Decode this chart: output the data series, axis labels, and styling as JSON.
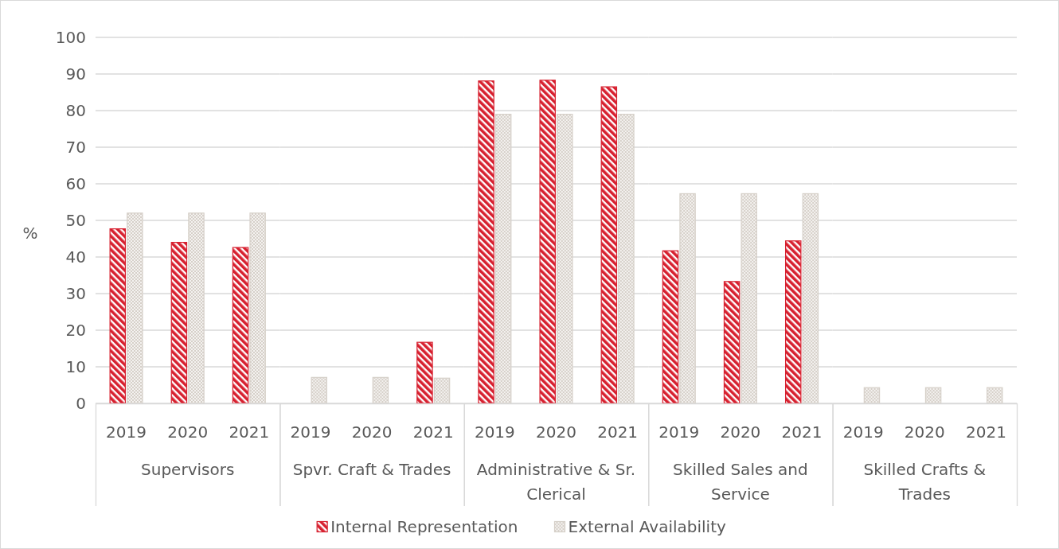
{
  "chart_data": [
    {
      "type": "bar",
      "xlabel": "Supervisors",
      "ylabel": "%",
      "categories": [
        "2019",
        "2020",
        "2021"
      ],
      "series": [
        {
          "color": "#d7202f",
          "values": [
            47.7,
            44.0,
            42.6
          ]
        },
        {
          "color": "#d6d0c9",
          "values": [
            52.0,
            52.0,
            52.0
          ]
        }
      ],
      "ylim": [
        0,
        100
      ],
      "yticks": [
        0,
        10,
        20,
        30,
        40,
        50,
        60,
        70,
        80,
        90,
        100
      ],
      "grid": "y"
    },
    {
      "type": "bar",
      "xlabel": "Spvr. Craft & Trades",
      "categories": [
        "2019",
        "2020",
        "2021"
      ],
      "series": [
        {
          "color": "#d7202f",
          "values": [
            null,
            null,
            16.7
          ]
        },
        {
          "color": "#d6d0c9",
          "values": [
            7.1,
            7.1,
            6.9
          ]
        }
      ],
      "ylim": [
        0,
        100
      ],
      "yticks": [
        0,
        10,
        20,
        30,
        40,
        50,
        60,
        70,
        80,
        90,
        100
      ],
      "grid": "y",
      "tick_labels": "x"
    },
    {
      "type": "bar",
      "xlabel": "Administrative & Sr. Clerical",
      "categories": [
        "2019",
        "2020",
        "2021"
      ],
      "series": [
        {
          "name": "Internal Representation",
          "color": "#d7202f",
          "values": [
            88.1,
            88.3,
            86.5
          ]
        },
        {
          "name": "External Availability",
          "color": "#d6d0c9",
          "values": [
            79.0,
            79.0,
            79.0
          ]
        }
      ],
      "ylim": [
        0,
        100
      ],
      "yticks": [
        0,
        10,
        20,
        30,
        40,
        50,
        60,
        70,
        80,
        90,
        100
      ],
      "grid": "y",
      "tick_labels": "x",
      "legend": "bottom"
    },
    {
      "type": "bar",
      "xlabel": "Skilled Sales and Service",
      "categories": [
        "2019",
        "2020",
        "2021"
      ],
      "series": [
        {
          "color": "#d7202f",
          "values": [
            41.7,
            33.3,
            44.4
          ]
        },
        {
          "color": "#d6d0c9",
          "values": [
            57.3,
            57.3,
            57.3
          ]
        }
      ],
      "ylim": [
        0,
        100
      ],
      "yticks": [
        0,
        10,
        20,
        30,
        40,
        50,
        60,
        70,
        80,
        90,
        100
      ],
      "grid": "y",
      "tick_labels": "x"
    },
    {
      "type": "bar",
      "xlabel": "Skilled Crafts & Trades",
      "categories": [
        "2019",
        "2020",
        "2021"
      ],
      "series": [
        {
          "color": "#d7202f",
          "values": [
            null,
            null,
            null
          ]
        },
        {
          "color": "#d6d0c9",
          "values": [
            4.3,
            4.3,
            4.3
          ]
        }
      ],
      "ylim": [
        0,
        100
      ],
      "yticks": [
        0,
        10,
        20,
        30,
        40,
        50,
        60,
        70,
        80,
        90,
        100
      ],
      "grid": "y",
      "tick_labels": "x"
    }
  ]
}
